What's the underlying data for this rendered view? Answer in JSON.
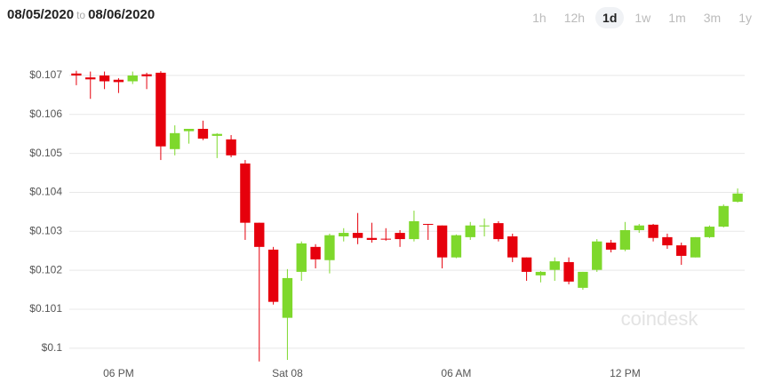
{
  "header": {
    "from": "08/05/2020",
    "separator": "to",
    "to": "08/06/2020"
  },
  "ranges": {
    "options": [
      "1h",
      "12h",
      "1d",
      "1w",
      "1m",
      "3m",
      "1y"
    ],
    "selected": 2
  },
  "watermark": "coindesk",
  "chart_data": {
    "type": "candlestick",
    "categories": [
      null,
      null,
      null,
      "06 PM",
      null,
      null,
      null,
      null,
      null,
      null,
      null,
      null,
      null,
      null,
      null,
      "Sat 08",
      null,
      null,
      null,
      null,
      null,
      null,
      null,
      null,
      null,
      null,
      null,
      "06 AM",
      null,
      null,
      null,
      null,
      null,
      null,
      null,
      null,
      null,
      null,
      null,
      "12 PM",
      null,
      null,
      null,
      null,
      null,
      null,
      null,
      null
    ],
    "open": [
      0.10705,
      0.10695,
      0.107,
      0.10689,
      0.10685,
      0.10703,
      0.10707,
      0.10511,
      0.10557,
      0.10563,
      0.10545,
      0.10536,
      0.10474,
      0.10322,
      0.10253,
      0.10078,
      0.10196,
      0.1026,
      0.10226,
      0.10287,
      0.10296,
      0.10283,
      0.10281,
      0.10296,
      0.1028,
      0.10319,
      0.10315,
      0.10233,
      0.10285,
      0.10313,
      0.10321,
      0.10287,
      0.10233,
      0.10187,
      0.10201,
      0.10221,
      0.10155,
      0.10201,
      0.10271,
      0.10253,
      0.10303,
      0.10317,
      0.10285,
      0.10264,
      0.10233,
      0.10285,
      0.10312,
      0.10376
    ],
    "high": [
      0.10712,
      0.1071,
      0.1071,
      0.10693,
      0.1071,
      0.10707,
      0.10711,
      0.10572,
      0.10563,
      0.10584,
      0.10552,
      0.10547,
      0.10483,
      0.10322,
      0.1026,
      0.10203,
      0.10274,
      0.10267,
      0.10294,
      0.10308,
      0.10347,
      0.10322,
      0.10308,
      0.10303,
      0.10353,
      0.10319,
      0.10315,
      0.10292,
      0.10324,
      0.10333,
      0.10326,
      0.10294,
      0.10233,
      0.10198,
      0.10233,
      0.10233,
      0.10196,
      0.1028,
      0.10278,
      0.10324,
      0.10319,
      0.10319,
      0.10294,
      0.10271,
      0.10285,
      0.10315,
      0.10369,
      0.1041
    ],
    "low": [
      0.10675,
      0.1064,
      0.10665,
      0.10655,
      0.10678,
      0.10665,
      0.10483,
      0.10495,
      0.10525,
      0.10534,
      0.10488,
      0.1049,
      0.10278,
      0.09966,
      0.10112,
      0.0997,
      0.10173,
      0.10205,
      0.10192,
      0.10274,
      0.10267,
      0.10271,
      0.10276,
      0.1026,
      0.10274,
      0.10278,
      0.10205,
      0.10231,
      0.10278,
      0.10287,
      0.10274,
      0.10221,
      0.10173,
      0.10169,
      0.10173,
      0.10164,
      0.1015,
      0.10196,
      0.10246,
      0.10249,
      0.10296,
      0.10274,
      0.10255,
      0.10214,
      0.10233,
      0.10283,
      0.1031,
      0.10374
    ],
    "close": [
      0.107,
      0.1069,
      0.10685,
      0.10683,
      0.107,
      0.10698,
      0.10518,
      0.10552,
      0.10563,
      0.10538,
      0.1055,
      0.10495,
      0.10322,
      0.1026,
      0.10119,
      0.1018,
      0.10269,
      0.10228,
      0.1029,
      0.10296,
      0.10283,
      0.10278,
      0.10279,
      0.1028,
      0.10326,
      0.10317,
      0.10233,
      0.1029,
      0.10315,
      0.10315,
      0.1028,
      0.10233,
      0.10196,
      0.10196,
      0.10223,
      0.10171,
      0.10196,
      0.10274,
      0.10253,
      0.10303,
      0.10315,
      0.10283,
      0.10264,
      0.10237,
      0.10285,
      0.10312,
      0.10365,
      0.10397
    ],
    "up_color": "#7ed82c",
    "down_color": "#e6000c",
    "ylim": [
      0.0997,
      0.1075
    ],
    "yticks": [
      {
        "value": 0.1,
        "label": "$0.1"
      },
      {
        "value": 0.101,
        "label": "$0.101"
      },
      {
        "value": 0.102,
        "label": "$0.102"
      },
      {
        "value": 0.103,
        "label": "$0.103"
      },
      {
        "value": 0.104,
        "label": "$0.104"
      },
      {
        "value": 0.105,
        "label": "$0.105"
      },
      {
        "value": 0.106,
        "label": "$0.106"
      },
      {
        "value": 0.107,
        "label": "$0.107"
      }
    ],
    "grid": true
  }
}
